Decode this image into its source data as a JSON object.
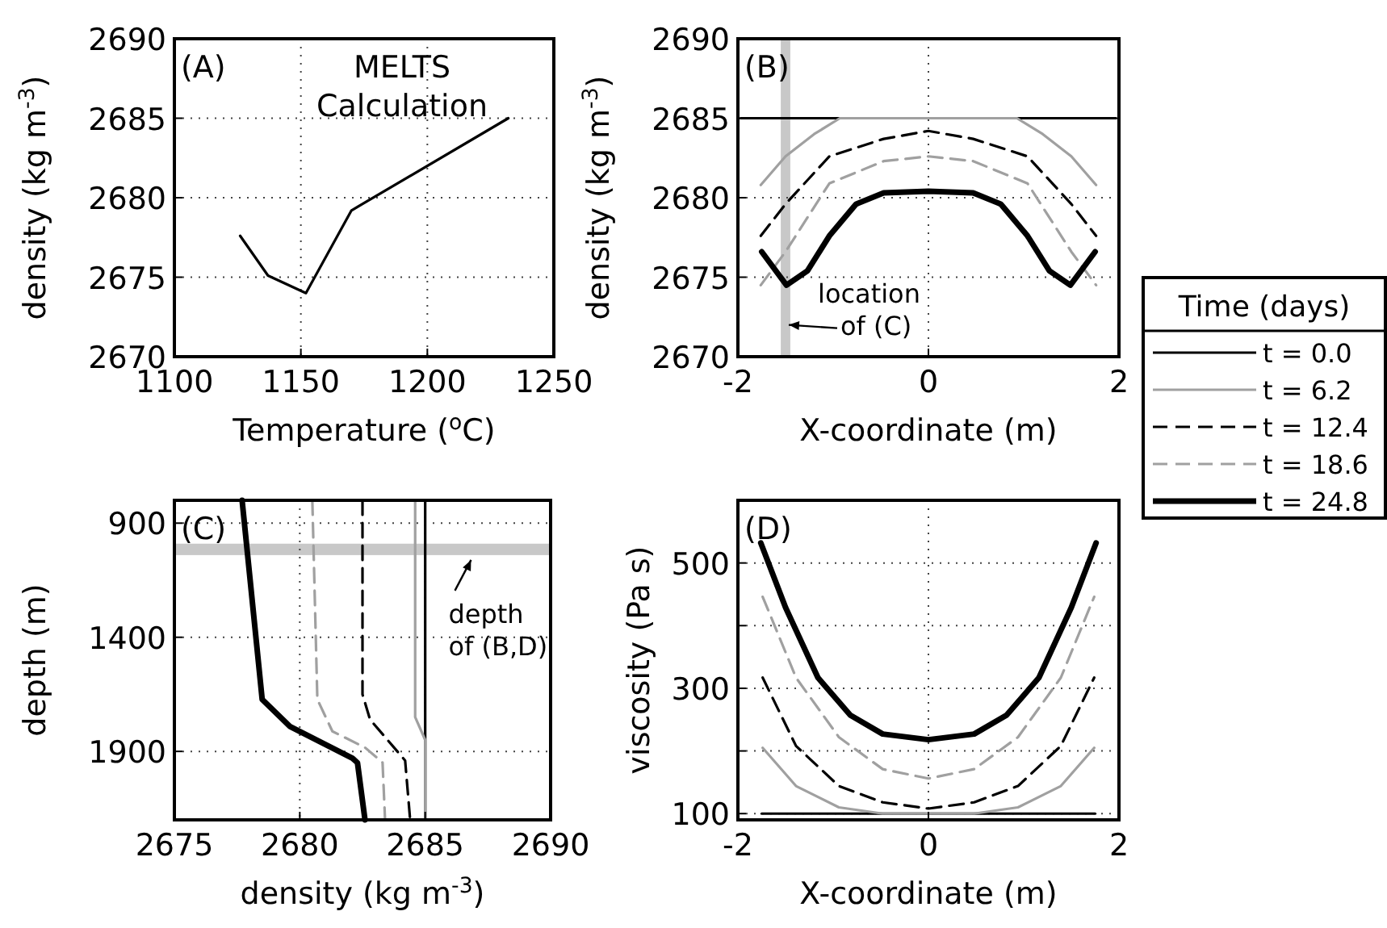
{
  "chart_data": [
    {
      "type": "line",
      "xlabel": "Temperature ($^{o}$C)",
      "ylabel": "density (kg m$^{-3}$)",
      "xlim": [
        1100,
        1250
      ],
      "xticks": [
        1100,
        1150,
        1200,
        1250
      ],
      "ylim": [
        2670,
        2690
      ],
      "yticks": [
        2670,
        2675,
        2680,
        2685,
        2690
      ],
      "grid": true,
      "line_style": "solid",
      "annotations": [
        "(A)",
        "MELTS\nCalculation"
      ],
      "series": [
        {
          "color": "#000000",
          "x": [
            1126,
            1137,
            1152,
            1170,
            1232
          ],
          "values": [
            2677.6,
            2675.1,
            2674,
            2679.2,
            2685
          ]
        }
      ]
    },
    {
      "type": "line",
      "xlabel": "X-coordinate (m)",
      "ylabel": "density (kg m$^{-3}$)",
      "xlim": [
        -2,
        2
      ],
      "xticks": [
        -2,
        0,
        2
      ],
      "ylim": [
        2670,
        2690
      ],
      "yticks": [
        2670,
        2675,
        2680,
        2685,
        2690
      ],
      "grid": true,
      "legend": "right",
      "legend_title": "Time (days)",
      "annotations": [
        "(B)",
        {
          "text": "location\nof (C)",
          "x": -1.5,
          "y": 2672
        }
      ],
      "bands": [
        {
          "axis": "x",
          "from": -1.55,
          "to": -1.45,
          "color": "#c8c8c8"
        }
      ],
      "series": [
        {
          "name": "t = 0.0",
          "color": "#000000",
          "line_style": "solid",
          "x": [
            -1.97,
            1.97
          ],
          "values": [
            2685,
            2685
          ]
        },
        {
          "name": "t = 6.2",
          "color": "#a0a0a0",
          "line_style": "solid",
          "x": [
            -1.76,
            -1.5,
            -1.2,
            -0.93,
            0.93,
            1.2,
            1.5,
            1.76
          ],
          "values": [
            2680.8,
            2682.6,
            2684,
            2685,
            2685,
            2684,
            2682.6,
            2680.8
          ]
        },
        {
          "name": "t = 12.4",
          "color": "#000000",
          "line_style": "dashed",
          "x": [
            -1.76,
            -1.5,
            -1.04,
            -0.47,
            0,
            0.47,
            1.04,
            1.5,
            1.76
          ],
          "values": [
            2677.6,
            2679.6,
            2682.6,
            2683.7,
            2684.2,
            2683.7,
            2682.6,
            2679.6,
            2677.6
          ]
        },
        {
          "name": "t = 18.6",
          "color": "#a0a0a0",
          "line_style": "dashed",
          "x": [
            -1.76,
            -1.5,
            -1.04,
            -0.47,
            0,
            0.47,
            1.04,
            1.5,
            1.76
          ],
          "values": [
            2674.5,
            2676.6,
            2680.9,
            2682.3,
            2682.6,
            2682.3,
            2680.9,
            2676.6,
            2674.5
          ]
        },
        {
          "name": "t = 24.8",
          "color": "#000000",
          "line_style": "solid",
          "x": [
            -1.75,
            -1.49,
            -1.27,
            -1.04,
            -0.76,
            -0.47,
            0,
            0.47,
            0.76,
            1.04,
            1.27,
            1.49,
            1.75
          ],
          "values": [
            2676.6,
            2674.5,
            2675.4,
            2677.6,
            2679.6,
            2680.3,
            2680.4,
            2680.3,
            2679.6,
            2677.6,
            2675.4,
            2674.5,
            2676.6
          ]
        }
      ]
    },
    {
      "type": "line",
      "orientation": "horizontal",
      "xlabel": "density (kg m$^{-3}$)",
      "ylabel": "depth (m)",
      "xlim": [
        2675,
        2690
      ],
      "xticks": [
        2675,
        2680,
        2685,
        2690
      ],
      "ylim": [
        2200,
        800
      ],
      "yticks": [
        900,
        1400,
        1900
      ],
      "grid": true,
      "annotations": [
        "(C)",
        {
          "text": "depth\nof (B,D)",
          "x": 2686.7,
          "y": 1040
        }
      ],
      "bands": [
        {
          "axis": "y",
          "from": 990,
          "to": 1040,
          "color": "#c8c8c8"
        }
      ],
      "series": [
        {
          "color": "#000000",
          "line_style": "solid",
          "x": [
            800,
            2200
          ],
          "values": [
            2685,
            2685
          ]
        },
        {
          "color": "#a0a0a0",
          "line_style": "solid",
          "x": [
            800,
            1750,
            1850,
            2200
          ],
          "values": [
            2684.6,
            2684.6,
            2685,
            2685
          ]
        },
        {
          "color": "#000000",
          "line_style": "dashed",
          "x": [
            800,
            1650,
            1760,
            1850,
            1940,
            2200
          ],
          "values": [
            2682.5,
            2682.5,
            2682.8,
            2683.5,
            2684.2,
            2684.4
          ]
        },
        {
          "color": "#a0a0a0",
          "line_style": "dashed",
          "x": [
            800,
            1672,
            1812,
            1883,
            1949,
            2200
          ],
          "values": [
            2680.5,
            2680.7,
            2681.3,
            2682.6,
            2683.3,
            2683.4
          ]
        },
        {
          "color": "#000000",
          "line_style": "solid",
          "x": [
            800,
            1672,
            1790,
            1930,
            1950,
            2200
          ],
          "values": [
            2677.7,
            2678.5,
            2679.6,
            2682.1,
            2682.3,
            2682.6
          ]
        }
      ]
    },
    {
      "type": "line",
      "xlabel": "X-coordinate (m)",
      "ylabel": "viscosity (Pa s)",
      "xlim": [
        -2,
        2
      ],
      "xticks": [
        -2,
        0,
        2
      ],
      "ylim": [
        90,
        600
      ],
      "yticks": [
        100,
        {
          "value": 200,
          "label": null
        },
        300,
        {
          "value": 400,
          "label": null
        },
        500
      ],
      "grid": true,
      "annotations": [
        "(D)"
      ],
      "series": [
        {
          "color": "#000000",
          "line_style": "solid",
          "x": [
            -1.75,
            1.75
          ],
          "values": [
            100,
            100
          ]
        },
        {
          "color": "#a0a0a0",
          "line_style": "solid",
          "x": [
            -1.74,
            -1.39,
            -0.94,
            -0.48,
            0,
            0.48,
            0.94,
            1.39,
            1.74
          ],
          "values": [
            205,
            144,
            110,
            100,
            100,
            100,
            110,
            144,
            205
          ]
        },
        {
          "color": "#000000",
          "line_style": "dashed",
          "x": [
            -1.74,
            -1.39,
            -0.94,
            -0.48,
            0,
            0.48,
            0.94,
            1.39,
            1.74
          ],
          "values": [
            317,
            208,
            144,
            118,
            108,
            118,
            144,
            208,
            317
          ]
        },
        {
          "color": "#a0a0a0",
          "line_style": "dashed",
          "x": [
            -1.74,
            -1.39,
            -0.94,
            -0.48,
            0,
            0.48,
            0.94,
            1.39,
            1.74
          ],
          "values": [
            446,
            317,
            222,
            171,
            156,
            171,
            222,
            317,
            446
          ]
        },
        {
          "color": "#000000",
          "line_style": "solid",
          "x": [
            -1.76,
            -1.5,
            -1.16,
            -0.82,
            -0.48,
            0,
            0.48,
            0.82,
            1.16,
            1.5,
            1.76
          ],
          "values": [
            532,
            429,
            317,
            257,
            227,
            218,
            227,
            257,
            317,
            429,
            532
          ]
        }
      ]
    }
  ]
}
